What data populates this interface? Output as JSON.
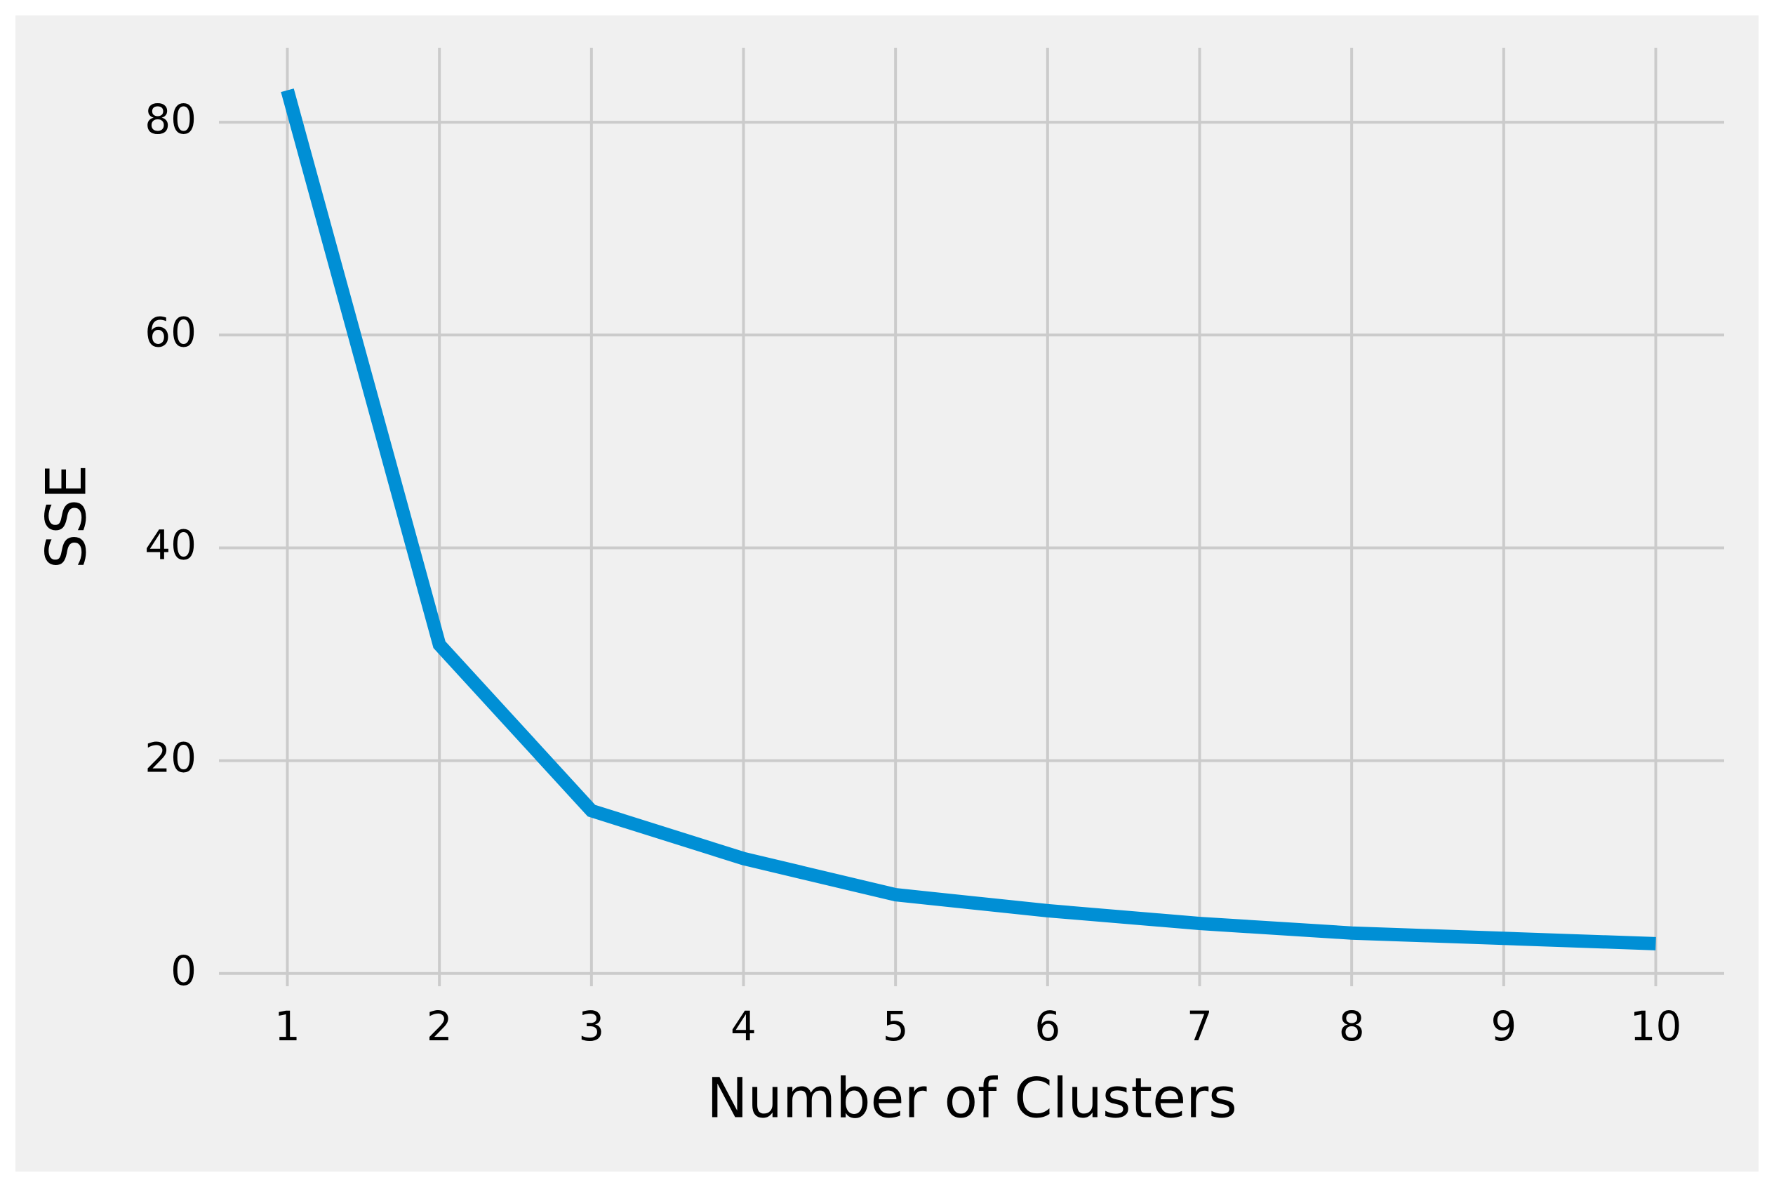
{
  "chart_data": {
    "type": "line",
    "x_label": "Number of Clusters",
    "y_label": "SSE",
    "x": [
      1,
      2,
      3,
      4,
      5,
      6,
      7,
      8,
      9,
      10
    ],
    "series": [
      {
        "color": "#008fd5",
        "values": [
          83.0,
          30.9,
          15.3,
          10.8,
          7.4,
          5.9,
          4.7,
          3.8,
          3.3,
          2.8
        ]
      }
    ],
    "xlim": [
      0.55,
      10.45
    ],
    "ylim": [
      -1.2,
      87.0
    ],
    "xticks": [
      1,
      2,
      3,
      4,
      5,
      6,
      7,
      8,
      9,
      10
    ],
    "yticks": [
      0,
      20,
      40,
      60,
      80
    ],
    "grid": true
  }
}
